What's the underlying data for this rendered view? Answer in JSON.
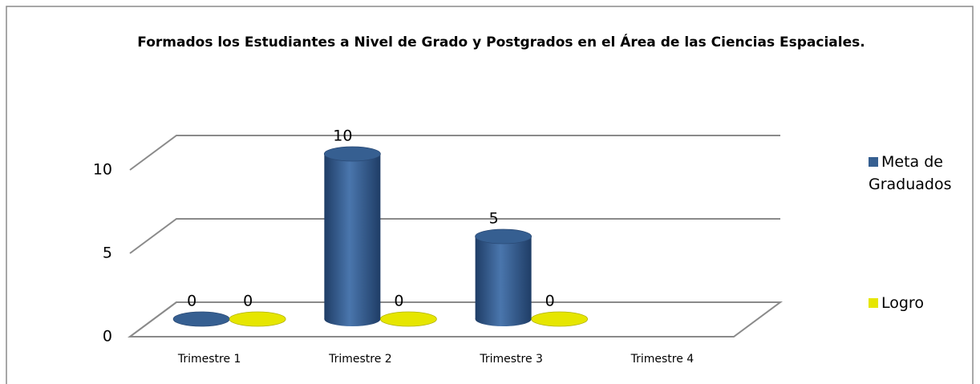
{
  "chart_data": {
    "type": "bar3d",
    "title": "Formados los Estudiantes a Nivel de Grado y Postgrados en el Área de las Ciencias Espaciales.",
    "categories": [
      "Trimestre 1",
      "Trimestre 2",
      "Trimestre 3",
      "Trimestre 4"
    ],
    "series": [
      {
        "name": "Meta de Graduados",
        "color": "#365f91",
        "values": [
          0,
          10,
          5,
          null
        ]
      },
      {
        "name": "Logro",
        "color": "#e6e600",
        "values": [
          0,
          0,
          0,
          null
        ]
      }
    ],
    "ylim": [
      0,
      10
    ],
    "yticks": [
      0,
      5,
      10
    ],
    "grid": true,
    "legend": "right"
  }
}
